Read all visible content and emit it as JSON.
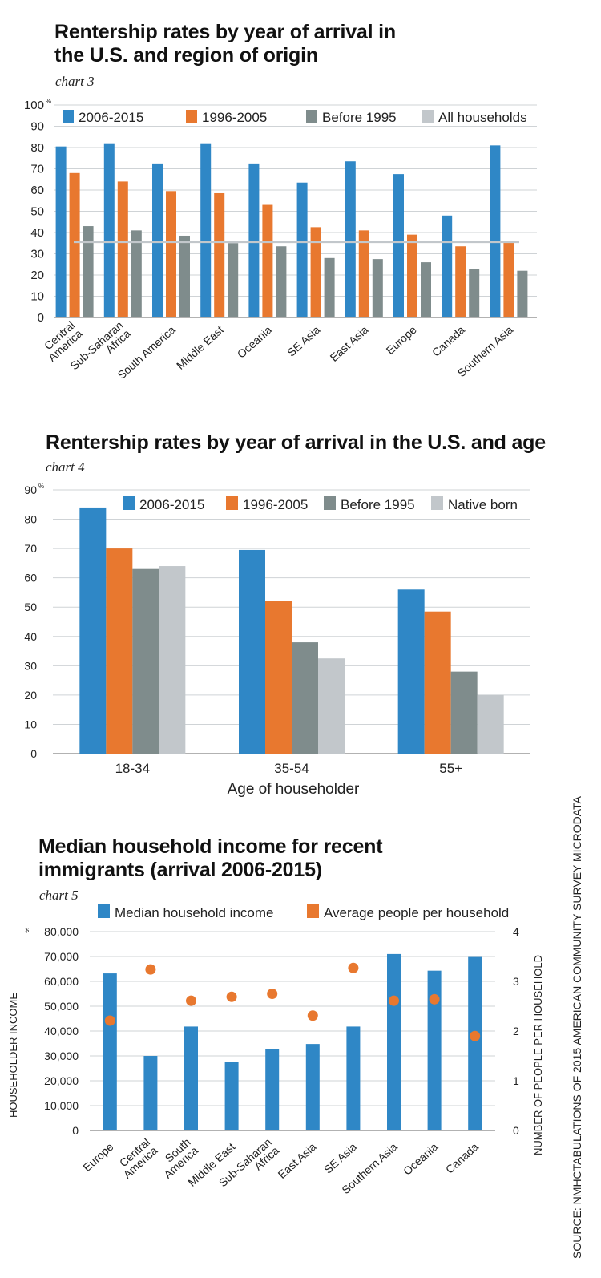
{
  "source": "SOURCE: NMHCTABULATIONS OF 2015 AMERICAN COMMUNITY SURVEY MICRODATA",
  "colors": {
    "blue": "#2f87c6",
    "orange": "#e8782f",
    "gray": "#7f8c8c",
    "light": "#c2c7cb",
    "line": "#c2c7cb"
  },
  "charts": {
    "c3": {
      "title": "Rentership rates by year of arrival in the U.S. and region of origin",
      "subtitle": "chart 3",
      "chart_data": {
        "type": "bar",
        "ylim": [
          0,
          100
        ],
        "yticks": [
          0,
          10,
          20,
          30,
          40,
          50,
          60,
          70,
          80,
          90,
          100
        ],
        "ytick_labels": [
          "0",
          "10",
          "20",
          "30",
          "40",
          "50",
          "60",
          "70",
          "80",
          "90",
          "100"
        ],
        "y_unit": "%",
        "categories": [
          [
            "Central",
            "America"
          ],
          [
            "Sub-Saharan",
            "Africa"
          ],
          [
            "South America"
          ],
          [
            "Middle East"
          ],
          [
            "Oceania"
          ],
          [
            "SE Asia"
          ],
          [
            "East Asia"
          ],
          [
            "Europe"
          ],
          [
            "Canada"
          ],
          [
            "Southern Asia"
          ]
        ],
        "series": [
          {
            "name": "2006-2015",
            "color": "#2f87c6",
            "values": [
              80.5,
              82,
              72.5,
              82,
              72.5,
              63.5,
              73.5,
              67.5,
              48,
              81
            ]
          },
          {
            "name": "1996-2005",
            "color": "#e8782f",
            "values": [
              68,
              64,
              59.5,
              58.5,
              53,
              42.5,
              41,
              39,
              33.5,
              36
            ]
          },
          {
            "name": "Before 1995",
            "color": "#7f8c8c",
            "values": [
              43,
              41,
              38.5,
              35,
              33.5,
              28,
              27.5,
              26,
              23,
              22
            ]
          }
        ],
        "reference_line": {
          "name": "All households",
          "color": "#c2c7cb",
          "value": 35.5
        }
      }
    },
    "c4": {
      "title": "Rentership rates by year of arrival in the U.S. and age",
      "subtitle": "chart 4",
      "chart_data": {
        "type": "bar",
        "ylim": [
          0,
          90
        ],
        "yticks": [
          0,
          10,
          20,
          30,
          40,
          50,
          60,
          70,
          80,
          90
        ],
        "ytick_labels": [
          "0",
          "10",
          "20",
          "30",
          "40",
          "50",
          "60",
          "70",
          "80",
          "90"
        ],
        "y_unit": "%",
        "xlabel": "Age of householder",
        "categories": [
          "18-34",
          "35-54",
          "55+"
        ],
        "series": [
          {
            "name": "2006-2015",
            "color": "#2f87c6",
            "values": [
              84,
              69.5,
              56
            ]
          },
          {
            "name": "1996-2005",
            "color": "#e8782f",
            "values": [
              70,
              52,
              48.5
            ]
          },
          {
            "name": "Before 1995",
            "color": "#7f8c8c",
            "values": [
              63,
              38,
              28
            ]
          },
          {
            "name": "Native born",
            "color": "#c2c7cb",
            "values": [
              64,
              32.5,
              20
            ]
          }
        ]
      }
    },
    "c5": {
      "title": "Median household income for recent immigrants (arrival 2006-2015)",
      "subtitle": "chart 5",
      "chart_data": {
        "type": "bar",
        "ylim": [
          0,
          80000
        ],
        "yticks": [
          0,
          10000,
          20000,
          30000,
          40000,
          50000,
          60000,
          70000,
          80000
        ],
        "ytick_labels": [
          "0",
          "10,000",
          "20,000",
          "30,000",
          "40,000",
          "50,000",
          "60,000",
          "70,000",
          "80,000"
        ],
        "y_prefix": "$",
        "ylabel": "HOUSEHOLDER INCOME",
        "y2lim": [
          0,
          4
        ],
        "y2ticks": [
          0,
          1,
          2,
          3,
          4
        ],
        "y2ticks_labels": [
          "0",
          "1",
          "2",
          "3",
          "4"
        ],
        "y2label": "NUMBER OF PEOPLE PER HOUSEHOLD",
        "categories": [
          [
            "Europe"
          ],
          [
            "Central",
            "America"
          ],
          [
            "South",
            "America"
          ],
          [
            "Middle East"
          ],
          [
            "Sub-Saharan",
            "Africa"
          ],
          [
            "East Asia"
          ],
          [
            "SE Asia"
          ],
          [
            "Southern Asia"
          ],
          [
            "Oceania"
          ],
          [
            "Canada"
          ]
        ],
        "series": [
          {
            "name": "Median household income",
            "color": "#2f87c6",
            "type": "bar",
            "axis": "left",
            "values": [
              63200,
              30000,
              41800,
              27500,
              32700,
              34800,
              41800,
              71000,
              64300,
              69800
            ]
          },
          {
            "name": "Average people per household",
            "color": "#e8782f",
            "type": "scatter",
            "axis": "right",
            "values": [
              2.21,
              3.24,
              2.61,
              2.69,
              2.75,
              2.31,
              3.27,
              2.61,
              2.64,
              1.9
            ]
          }
        ]
      }
    }
  }
}
